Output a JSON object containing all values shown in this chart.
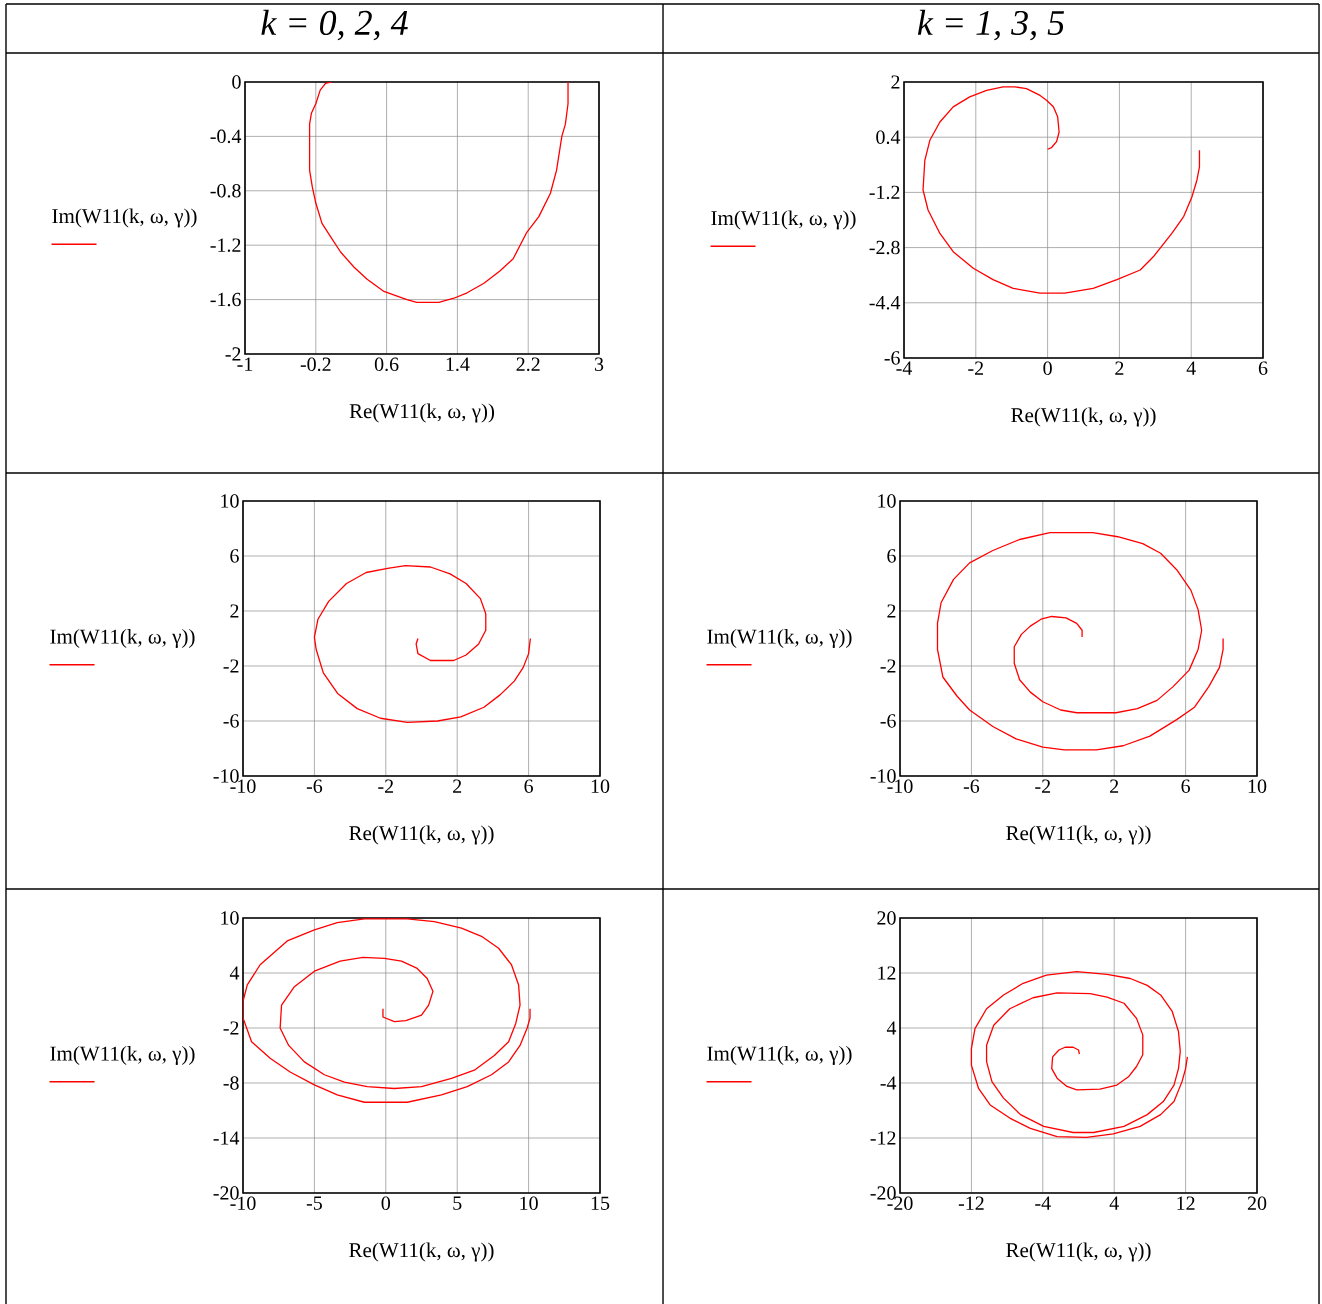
{
  "chart_data": [
    {
      "type": "line",
      "title": "k = 0, 2, 4",
      "xlabel": "Re(W11(k, ω, γ))",
      "ylabel": "Im(W11(k, ω, γ))",
      "xlim": [
        -1,
        3
      ],
      "ylim": [
        -2,
        0
      ],
      "xticks": [
        -1,
        -0.2,
        0.6,
        1.4,
        2.2,
        3
      ],
      "yticks": [
        -2,
        -1.6,
        -1.2,
        -0.8,
        -0.4,
        0
      ],
      "grid": true,
      "series": [
        {
          "color": "#ff0000",
          "x": [
            -0.02,
            -0.09,
            -0.15,
            -0.2,
            -0.25,
            -0.27,
            -0.27,
            -0.24,
            -0.2,
            -0.13,
            -0.03,
            0.08,
            0.23,
            0.38,
            0.57,
            0.83,
            0.94,
            1.19,
            1.36,
            1.51,
            1.7,
            1.88,
            2.03,
            2.18,
            2.32,
            2.45,
            2.52,
            2.58,
            2.62,
            2.65,
            2.65
          ],
          "values": [
            0,
            -0.01,
            -0.06,
            -0.16,
            -0.23,
            -0.31,
            -0.65,
            -0.77,
            -0.89,
            -1.04,
            -1.14,
            -1.25,
            -1.36,
            -1.45,
            -1.54,
            -1.6,
            -1.62,
            -1.62,
            -1.59,
            -1.55,
            -1.48,
            -1.39,
            -1.3,
            -1.11,
            -0.99,
            -0.82,
            -0.65,
            -0.4,
            -0.31,
            -0.16,
            0
          ]
        }
      ]
    },
    {
      "type": "line",
      "title": "k = 1, 3, 5",
      "xlabel": "Re(W11(k, ω, γ))",
      "ylabel": "Im(W11(k, ω, γ))",
      "xlim": [
        -4,
        6
      ],
      "ylim": [
        -6,
        2
      ],
      "xticks": [
        -4,
        -2,
        0,
        2,
        4,
        6
      ],
      "yticks": [
        -6,
        -4.4,
        -2.8,
        -1.2,
        0.4,
        2
      ],
      "grid": true,
      "series": [
        {
          "color": "#ff0000",
          "x": [
            0,
            0.11,
            0.25,
            0.32,
            0.28,
            0.16,
            -0.03,
            -0.21,
            -0.59,
            -0.91,
            -1.24,
            -1.7,
            -2.17,
            -2.63,
            -3.0,
            -3.28,
            -3.42,
            -3.47,
            -3.33,
            -3.0,
            -2.63,
            -2.07,
            -1.52,
            -0.96,
            -0.49,
            -0.21,
            0.48,
            1.27,
            1.93,
            2.58,
            2.95,
            3.46,
            3.79,
            4.02,
            4.16,
            4.23,
            4.23
          ],
          "values": [
            0.05,
            0.1,
            0.27,
            0.55,
            0.99,
            1.28,
            1.47,
            1.61,
            1.81,
            1.86,
            1.86,
            1.76,
            1.57,
            1.28,
            0.84,
            0.31,
            -0.27,
            -1.13,
            -1.71,
            -2.39,
            -2.92,
            -3.4,
            -3.73,
            -3.98,
            -4.07,
            -4.12,
            -4.12,
            -3.98,
            -3.73,
            -3.45,
            -3.06,
            -2.39,
            -1.9,
            -1.33,
            -0.84,
            -0.46,
            0.02
          ]
        }
      ]
    },
    {
      "type": "line",
      "xlabel": "Re(W11(k, ω, γ))",
      "ylabel": "Im(W11(k, ω, γ))",
      "xlim": [
        -10,
        10
      ],
      "ylim": [
        -10,
        10
      ],
      "xticks": [
        -10,
        -6,
        -2,
        2,
        6,
        10
      ],
      "yticks": [
        -10,
        -6,
        -2,
        2,
        6,
        10
      ],
      "grid": true,
      "series": [
        {
          "color": "#ff0000",
          "x": [
            -0.2,
            -0.3,
            -0.2,
            0.5,
            1.8,
            2.5,
            3.2,
            3.6,
            3.6,
            3.3,
            2.5,
            1.6,
            0.5,
            -0.9,
            -1.9,
            -3.1,
            -4.2,
            -5.2,
            -5.8,
            -6.0,
            -5.9,
            -5.5,
            -4.7,
            -3.6,
            -2.3,
            -0.8,
            0.9,
            2.2,
            3.5,
            4.4,
            5.2,
            5.7,
            6.0,
            6.1
          ],
          "values": [
            0.0,
            -0.4,
            -1.1,
            -1.6,
            -1.6,
            -1.2,
            -0.4,
            0.6,
            1.8,
            2.9,
            4.0,
            4.7,
            5.2,
            5.3,
            5.1,
            4.8,
            4.0,
            2.7,
            1.4,
            0.1,
            -0.8,
            -2.5,
            -4.0,
            -5.1,
            -5.8,
            -6.1,
            -6.0,
            -5.7,
            -5.0,
            -4.1,
            -3.1,
            -2.1,
            -1.1,
            0.0
          ]
        }
      ]
    },
    {
      "type": "line",
      "xlabel": "Re(W11(k, ω, γ))",
      "ylabel": "Im(W11(k, ω, γ))",
      "xlim": [
        -10,
        10
      ],
      "ylim": [
        -10,
        10
      ],
      "xticks": [
        -10,
        -6,
        -2,
        2,
        6,
        10
      ],
      "yticks": [
        -10,
        -6,
        -2,
        2,
        6,
        10
      ],
      "grid": true,
      "series": [
        {
          "color": "#ff0000",
          "x": [
            0.2,
            0.2,
            -0.1,
            -0.7,
            -1.5,
            -2.1,
            -2.7,
            -3.2,
            -3.6,
            -3.6,
            -3.3,
            -2.7,
            -2.0,
            -1.0,
            -0.1,
            2.1,
            3.3,
            4.4,
            5.3,
            6.2,
            6.7,
            6.9,
            6.7,
            6.3,
            5.5,
            4.6,
            3.6,
            2.2,
            0.8,
            -1.6,
            -3.3,
            -4.8,
            -6.1,
            -7.0,
            -7.7,
            -7.9,
            -7.9,
            -7.6,
            -6.8,
            -6.1,
            -4.8,
            -3.5,
            -2.0,
            -0.8,
            1.0,
            2.5,
            4.0,
            5.5,
            6.5,
            7.3,
            7.9,
            8.1,
            8.1
          ],
          "values": [
            0.1,
            0.6,
            1.1,
            1.5,
            1.6,
            1.4,
            0.9,
            0.3,
            -0.6,
            -1.8,
            -3.0,
            -3.9,
            -4.6,
            -5.2,
            -5.4,
            -5.4,
            -5.1,
            -4.5,
            -3.5,
            -2.3,
            -0.8,
            0.6,
            2.1,
            3.5,
            5.0,
            6.2,
            6.9,
            7.4,
            7.7,
            7.7,
            7.2,
            6.4,
            5.5,
            4.3,
            2.6,
            1.1,
            -0.8,
            -2.8,
            -4.2,
            -5.2,
            -6.4,
            -7.3,
            -7.9,
            -8.1,
            -8.1,
            -7.8,
            -7.1,
            -5.9,
            -5.0,
            -3.5,
            -2.1,
            -0.8,
            0.0
          ]
        }
      ]
    },
    {
      "type": "line",
      "xlabel": "Re(W11(k, ω, γ))",
      "ylabel": "Im(W11(k, ω, γ))",
      "xlim": [
        -10,
        15
      ],
      "ylim": [
        -20,
        10
      ],
      "xticks": [
        -10,
        -5,
        0,
        5,
        10,
        15
      ],
      "yticks": [
        -20,
        -14,
        -8,
        -2,
        4,
        10
      ],
      "grid": true,
      "series": [
        {
          "color": "#ff0000",
          "x": [
            -0.2,
            -0.2,
            0.6,
            1.4,
            2.5,
            3.0,
            3.3,
            2.9,
            2.2,
            1.1,
            -0.1,
            -1.6,
            -3.2,
            -5.0,
            -6.4,
            -7.3,
            -7.4,
            -6.8,
            -5.7,
            -4.3,
            -2.9,
            -1.3,
            0.6,
            2.5,
            4.6,
            6.2,
            7.6,
            8.6,
            9.1,
            9.4,
            9.3,
            8.8,
            7.9,
            6.7,
            5.3,
            3.4,
            1.5,
            -1.5,
            -3.4,
            -5.0,
            -6.9,
            -8.8,
            -9.7,
            -10.0,
            -10.0,
            -9.4,
            -8.1,
            -6.7,
            -5.0,
            -3.4,
            -1.5,
            1.5,
            3.9,
            5.7,
            7.4,
            8.6,
            9.4,
            9.9,
            10.1,
            10.1
          ],
          "values": [
            0.1,
            -0.8,
            -1.3,
            -1.2,
            -0.6,
            0.5,
            2.0,
            3.4,
            4.5,
            5.3,
            5.6,
            5.7,
            5.3,
            4.2,
            2.5,
            0.5,
            -2.0,
            -3.9,
            -5.7,
            -7.1,
            -7.9,
            -8.4,
            -8.6,
            -8.4,
            -7.5,
            -6.6,
            -5.0,
            -3.5,
            -1.5,
            0.5,
            2.7,
            4.9,
            6.7,
            8.0,
            8.9,
            9.6,
            9.9,
            9.9,
            9.5,
            8.7,
            7.5,
            4.9,
            2.7,
            0.9,
            -0.9,
            -3.5,
            -5.3,
            -6.8,
            -8.2,
            -9.3,
            -10.1,
            -10.1,
            -9.3,
            -8.4,
            -7.1,
            -5.7,
            -3.9,
            -2.0,
            -0.9,
            0.1
          ]
        }
      ]
    },
    {
      "type": "line",
      "xlabel": "Re(W11(k, ω, γ))",
      "ylabel": "Im(W11(k, ω, γ))",
      "xlim": [
        -20,
        20
      ],
      "ylim": [
        -20,
        20
      ],
      "xticks": [
        -20,
        -12,
        -4,
        4,
        12,
        20
      ],
      "yticks": [
        -20,
        -12,
        -4,
        4,
        12,
        20
      ],
      "grid": true,
      "series": [
        {
          "color": "#ff0000",
          "x": [
            0.1,
            0.0,
            -0.6,
            -1.5,
            -2.2,
            -2.9,
            -3.0,
            -2.4,
            -1.3,
            -0.2,
            2.4,
            4.3,
            5.6,
            6.5,
            7.2,
            7.2,
            6.5,
            5.1,
            3.2,
            1.3,
            -2.4,
            -5.1,
            -7.7,
            -9.5,
            -10.3,
            -10.3,
            -9.7,
            -8.4,
            -6.5,
            -3.9,
            -0.6,
            1.7,
            5.1,
            7.7,
            9.5,
            10.7,
            11.2,
            11.4,
            11.2,
            10.5,
            9.2,
            7.7,
            5.8,
            3.2,
            -0.2,
            -3.6,
            -6.2,
            -8.4,
            -10.3,
            -11.6,
            -12.0,
            -12.0,
            -11.2,
            -9.9,
            -7.7,
            -5.4,
            -2.4,
            0.9,
            3.9,
            6.9,
            9.2,
            10.7,
            11.6,
            12.0,
            12.2
          ],
          "values": [
            0.2,
            0.8,
            1.2,
            1.2,
            0.8,
            -0.2,
            -1.9,
            -3.3,
            -4.5,
            -5.0,
            -4.9,
            -4.3,
            -3.1,
            -1.6,
            0.1,
            3.0,
            5.4,
            7.6,
            8.5,
            9.0,
            9.1,
            8.4,
            6.8,
            4.4,
            1.5,
            -0.9,
            -3.8,
            -6.2,
            -8.6,
            -10.3,
            -11.2,
            -11.2,
            -10.3,
            -8.6,
            -6.7,
            -4.3,
            -1.9,
            0.6,
            3.5,
            6.4,
            8.8,
            10.2,
            11.2,
            11.8,
            12.2,
            11.7,
            10.5,
            8.8,
            6.8,
            3.9,
            1.0,
            -1.4,
            -4.8,
            -7.2,
            -9.1,
            -10.6,
            -11.8,
            -11.9,
            -11.4,
            -10.3,
            -8.6,
            -6.7,
            -3.8,
            -1.9,
            -0.2
          ]
        }
      ]
    }
  ]
}
